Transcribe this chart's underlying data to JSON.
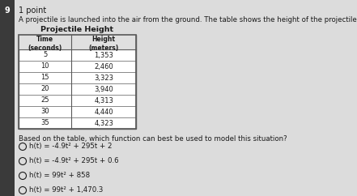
{
  "page_number": "9",
  "points": "1 point",
  "description": "A projectile is launched into the air from the ground. The table shows the height of the projectile, h(t), at different times.",
  "table_title": "Projectile Height",
  "col_headers": [
    "Time\n(seconds)",
    "Height\n(meters)"
  ],
  "table_data": [
    [
      "5",
      "1,353"
    ],
    [
      "10",
      "2,460"
    ],
    [
      "15",
      "3,323"
    ],
    [
      "20",
      "3,940"
    ],
    [
      "25",
      "4,313"
    ],
    [
      "30",
      "4,440"
    ],
    [
      "35",
      "4,323"
    ]
  ],
  "question": "Based on the table, which function can best be used to model this situation?",
  "options": [
    "h(t) = -4.9t² + 295t + 2",
    "h(t) = -4.9t² + 295t + 0.6",
    "h(t) = 99t² + 858",
    "h(t) = 99t² + 1,470.3"
  ],
  "bg_color": "#c8c8c8",
  "content_bg": "#dcdcdc",
  "left_panel_color": "#3a3a3a",
  "text_color": "#1a1a1a",
  "table_bg": "#ffffff",
  "table_border": "#5a5a5a",
  "header_bg": "#e0e0e0"
}
